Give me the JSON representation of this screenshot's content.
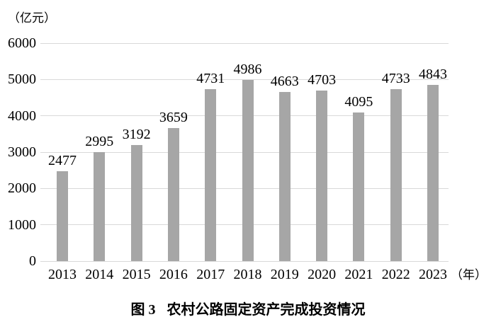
{
  "figure": {
    "y_unit": "（亿元）",
    "x_unit": "（年）",
    "caption_label": "图 3",
    "caption_title": "农村公路固定资产完成投资情况"
  },
  "chart_data": {
    "type": "bar",
    "title": "图 3 农村公路固定资产完成投资情况",
    "ylabel": "（亿元）",
    "xlabel": "（年）",
    "categories": [
      "2013",
      "2014",
      "2015",
      "2016",
      "2017",
      "2018",
      "2019",
      "2020",
      "2021",
      "2022",
      "2023"
    ],
    "values": [
      2477,
      2995,
      3192,
      3659,
      4731,
      4986,
      4663,
      4703,
      4095,
      4733,
      4843
    ],
    "ylim": [
      0,
      6000
    ],
    "yticks": [
      0,
      1000,
      2000,
      3000,
      4000,
      5000,
      6000
    ],
    "grid": true,
    "legend_position": "none",
    "bar_color": "#a6a6a6",
    "grid_color": "#d9d9d9",
    "text_color": "#000000"
  }
}
